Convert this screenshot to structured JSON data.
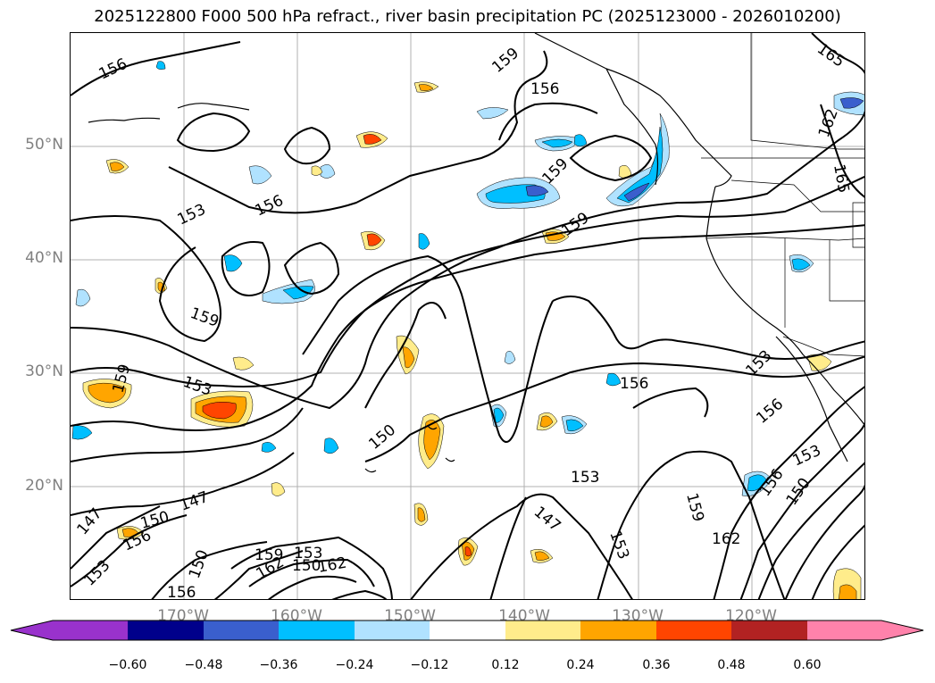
{
  "title": "2025122800 F000 500 hPa refract., river basin precipitation PC (2025123000 - 2026010200)",
  "map": {
    "lat_labels": [
      "50°N",
      "40°N",
      "30°N",
      "20°N"
    ],
    "lon_labels": [
      "170°W",
      "160°W",
      "150°W",
      "140°W",
      "130°W",
      "120°W"
    ],
    "contour_labels": [
      "156",
      "159",
      "156",
      "165",
      "162",
      "165",
      "159",
      "156",
      "153",
      "159",
      "159",
      "153",
      "156",
      "150",
      "153",
      "156",
      "147",
      "153",
      "159",
      "153",
      "147",
      "150",
      "156",
      "162",
      "147",
      "150",
      "156",
      "150",
      "159",
      "162",
      "162",
      "153",
      "153",
      "150",
      "159",
      "153",
      "156"
    ],
    "colors": {
      "contour": "#000000",
      "coastline": "#000000",
      "grid": "#b0b0b0",
      "axis_labels": "#808080"
    }
  },
  "colorbar": {
    "tick_labels": [
      "−0.60",
      "−0.48",
      "−0.36",
      "−0.24",
      "−0.12",
      "0.12",
      "0.24",
      "0.36",
      "0.48",
      "0.60"
    ],
    "colors": [
      "#9932cc",
      "#00008b",
      "#3a5fcd",
      "#00bfff",
      "#b0e2ff",
      "#ffffff",
      "#ffec8b",
      "#ffa500",
      "#ff4500",
      "#b22222",
      "#ff82ab"
    ]
  }
}
